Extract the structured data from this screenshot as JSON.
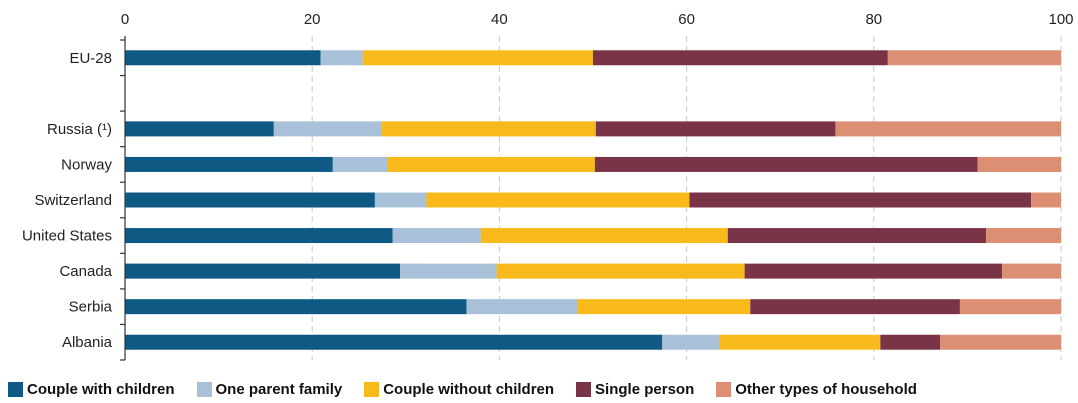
{
  "chart_data": {
    "type": "bar",
    "orientation": "horizontal",
    "stacked": true,
    "title": "",
    "xlabel": "",
    "ylabel": "",
    "xlim": [
      0,
      100
    ],
    "xticks": [
      "0",
      "20",
      "40",
      "60",
      "80",
      "100"
    ],
    "xtick_position": "top",
    "grid": "vertical-dashed",
    "legend_position": "bottom",
    "categories": [
      "EU-28",
      "",
      "Russia (¹)",
      "Norway",
      "Switzerland",
      "United States",
      "Canada",
      "Serbia",
      "Albania"
    ],
    "series": [
      {
        "name": "Couple with children",
        "color": "#0e5a85",
        "values": [
          20.9,
          null,
          15.9,
          22.2,
          26.7,
          28.6,
          29.4,
          36.5,
          57.4
        ]
      },
      {
        "name": "One parent family",
        "color": "#a9c1d8",
        "values": [
          4.5,
          null,
          11.5,
          5.8,
          5.5,
          9.4,
          10.3,
          11.9,
          6.1
        ]
      },
      {
        "name": "Couple without children",
        "color": "#f8b91a",
        "values": [
          24.6,
          null,
          22.9,
          22.2,
          28.1,
          26.4,
          26.5,
          18.4,
          17.2
        ]
      },
      {
        "name": "Single person",
        "color": "#7a3447",
        "values": [
          31.5,
          null,
          25.6,
          40.9,
          36.5,
          27.6,
          27.5,
          22.4,
          6.4
        ]
      },
      {
        "name": "Other types of household",
        "color": "#dd8f74",
        "values": [
          18.5,
          null,
          24.1,
          8.9,
          3.2,
          8.0,
          6.3,
          10.8,
          12.9
        ]
      }
    ]
  }
}
